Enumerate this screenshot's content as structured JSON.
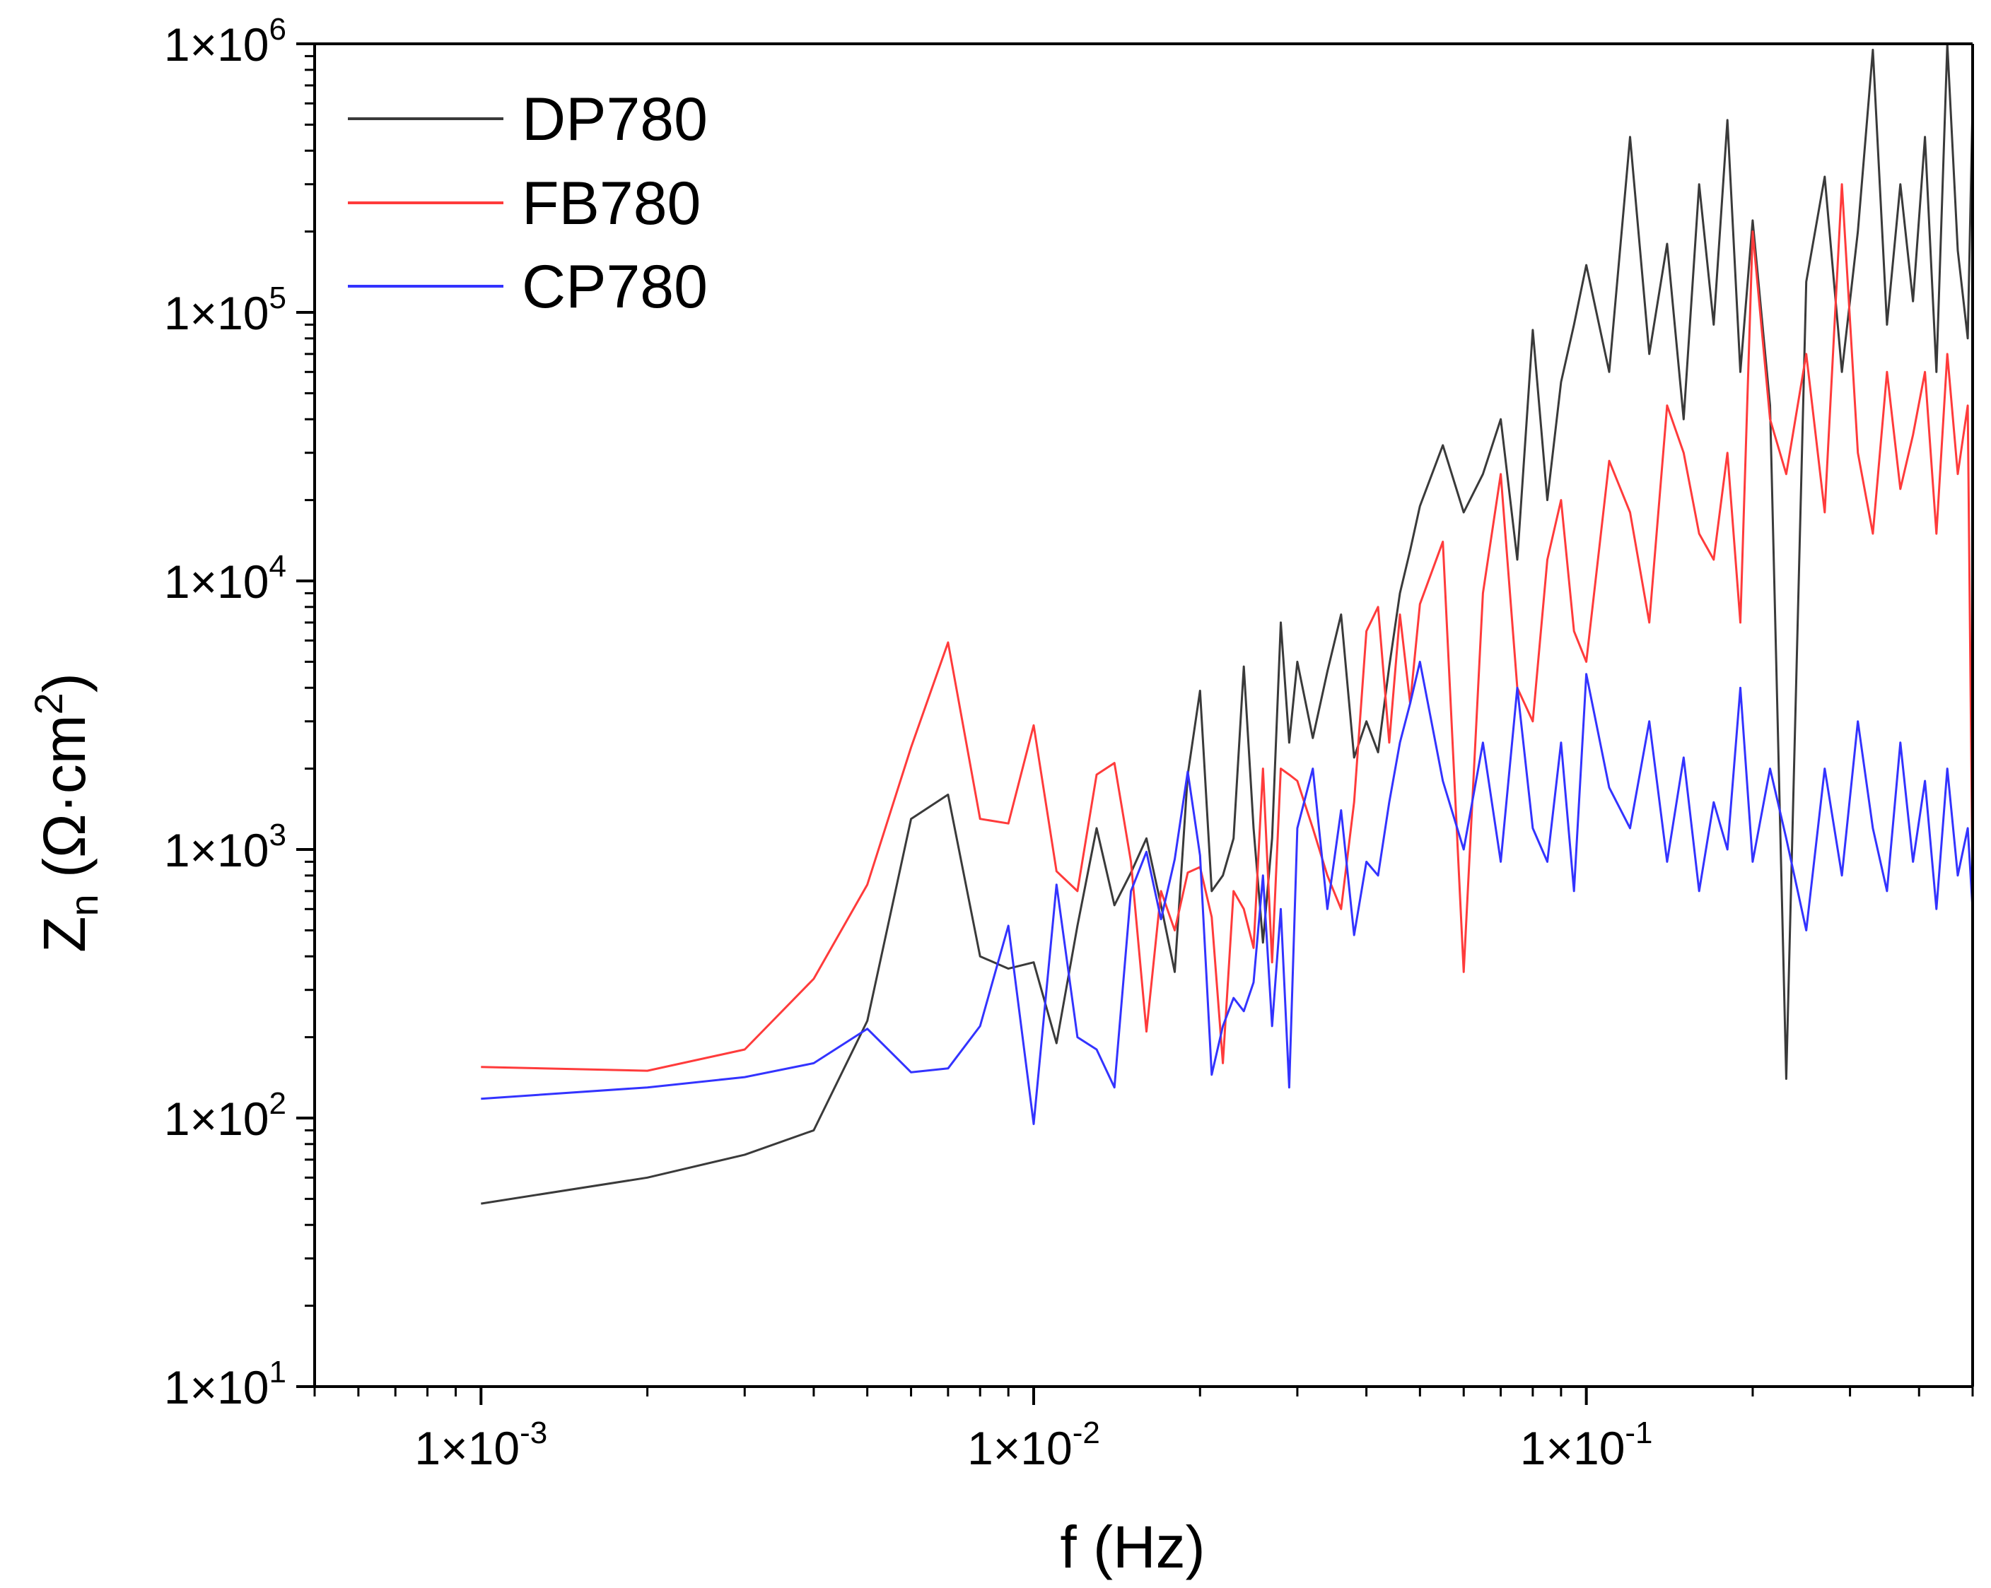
{
  "chart_data": {
    "type": "line",
    "xlabel": "f (Hz)",
    "ylabel": {
      "main": "Z",
      "sub": "n",
      "unit_prefix": " (Ω·cm",
      "unit_sup": "2",
      "unit_suffix": ")"
    },
    "x_scale": "log",
    "y_scale": "log",
    "xlim": [
      0.0005,
      0.5
    ],
    "ylim": [
      10,
      1000000
    ],
    "grid": false,
    "legend_position": "top-left",
    "x_ticks": [
      {
        "value": 0.001,
        "mantissa": "1×10",
        "exp": "-3"
      },
      {
        "value": 0.01,
        "mantissa": "1×10",
        "exp": "-2"
      },
      {
        "value": 0.1,
        "mantissa": "1×10",
        "exp": "-1"
      }
    ],
    "y_ticks": [
      {
        "value": 10,
        "mantissa": "1×10",
        "exp": "1"
      },
      {
        "value": 100,
        "mantissa": "1×10",
        "exp": "2"
      },
      {
        "value": 1000,
        "mantissa": "1×10",
        "exp": "3"
      },
      {
        "value": 10000,
        "mantissa": "1×10",
        "exp": "4"
      },
      {
        "value": 100000,
        "mantissa": "1×10",
        "exp": "5"
      },
      {
        "value": 1000000,
        "mantissa": "1×10",
        "exp": "6"
      }
    ],
    "series": [
      {
        "name": "DP780",
        "color": "#3a3a3a",
        "x": [
          0.001,
          0.002,
          0.003,
          0.004,
          0.005,
          0.006,
          0.007,
          0.008,
          0.009,
          0.01,
          0.011,
          0.012,
          0.013,
          0.014,
          0.015,
          0.016,
          0.017,
          0.018,
          0.019,
          0.02,
          0.021,
          0.022,
          0.023,
          0.024,
          0.025,
          0.026,
          0.027,
          0.028,
          0.029,
          0.03,
          0.032,
          0.034,
          0.036,
          0.038,
          0.04,
          0.042,
          0.044,
          0.046,
          0.048,
          0.05,
          0.055,
          0.06,
          0.065,
          0.07,
          0.075,
          0.08,
          0.085,
          0.09,
          0.095,
          0.1,
          0.11,
          0.12,
          0.13,
          0.14,
          0.15,
          0.16,
          0.17,
          0.18,
          0.19,
          0.2,
          0.215,
          0.23,
          0.25,
          0.27,
          0.29,
          0.31,
          0.33,
          0.35,
          0.37,
          0.39,
          0.41,
          0.43,
          0.45,
          0.47,
          0.49,
          0.5
        ],
        "y": [
          48,
          60,
          73,
          90,
          230,
          1300,
          1600,
          400,
          360,
          380,
          190,
          520,
          1200,
          620,
          820,
          1100,
          620,
          350,
          1900,
          3900,
          700,
          800,
          1100,
          4800,
          1200,
          450,
          1100,
          7000,
          2500,
          5000,
          2600,
          4600,
          7500,
          2200,
          3000,
          2300,
          4800,
          9000,
          13000,
          19000,
          32000,
          18000,
          25000,
          40000,
          12000,
          86000,
          20000,
          55000,
          90000,
          150000,
          60000,
          450000,
          70000,
          180000,
          40000,
          300000,
          90000,
          520000,
          60000,
          220000,
          45000,
          140,
          130000,
          320000,
          60000,
          200000,
          950000,
          90000,
          300000,
          110000,
          450000,
          60000,
          1000000,
          170000,
          80000,
          600000
        ]
      },
      {
        "name": "FB780",
        "color": "#ff3b3b",
        "x": [
          0.001,
          0.002,
          0.003,
          0.004,
          0.005,
          0.006,
          0.007,
          0.008,
          0.009,
          0.01,
          0.011,
          0.012,
          0.013,
          0.014,
          0.015,
          0.016,
          0.017,
          0.018,
          0.019,
          0.02,
          0.021,
          0.022,
          0.023,
          0.024,
          0.025,
          0.026,
          0.027,
          0.028,
          0.029,
          0.03,
          0.032,
          0.034,
          0.036,
          0.038,
          0.04,
          0.042,
          0.044,
          0.046,
          0.048,
          0.05,
          0.055,
          0.06,
          0.065,
          0.07,
          0.075,
          0.08,
          0.085,
          0.09,
          0.095,
          0.1,
          0.11,
          0.12,
          0.13,
          0.14,
          0.15,
          0.16,
          0.17,
          0.18,
          0.19,
          0.2,
          0.215,
          0.23,
          0.25,
          0.27,
          0.29,
          0.31,
          0.33,
          0.35,
          0.37,
          0.39,
          0.41,
          0.43,
          0.45,
          0.47,
          0.49,
          0.5
        ],
        "y": [
          155,
          150,
          180,
          330,
          740,
          2400,
          5900,
          1300,
          1250,
          2900,
          830,
          700,
          1900,
          2100,
          900,
          210,
          700,
          500,
          820,
          860,
          560,
          160,
          700,
          600,
          430,
          2000,
          380,
          2000,
          1900,
          1800,
          1200,
          800,
          600,
          1500,
          6500,
          8000,
          2500,
          7500,
          3500,
          8200,
          14000,
          350,
          9000,
          25000,
          4000,
          3000,
          12000,
          20000,
          6500,
          5000,
          28000,
          18000,
          7000,
          45000,
          30000,
          15000,
          12000,
          30000,
          7000,
          200000,
          40000,
          25000,
          70000,
          18000,
          300000,
          30000,
          15000,
          60000,
          22000,
          35000,
          60000,
          15000,
          70000,
          25000,
          45000,
          700
        ]
      },
      {
        "name": "CP780",
        "color": "#3333ff",
        "x": [
          0.001,
          0.002,
          0.003,
          0.004,
          0.005,
          0.006,
          0.007,
          0.008,
          0.009,
          0.01,
          0.011,
          0.012,
          0.013,
          0.014,
          0.015,
          0.016,
          0.017,
          0.018,
          0.019,
          0.02,
          0.021,
          0.022,
          0.023,
          0.024,
          0.025,
          0.026,
          0.027,
          0.028,
          0.029,
          0.03,
          0.032,
          0.034,
          0.036,
          0.038,
          0.04,
          0.042,
          0.044,
          0.046,
          0.048,
          0.05,
          0.055,
          0.06,
          0.065,
          0.07,
          0.075,
          0.08,
          0.085,
          0.09,
          0.095,
          0.1,
          0.11,
          0.12,
          0.13,
          0.14,
          0.15,
          0.16,
          0.17,
          0.18,
          0.19,
          0.2,
          0.215,
          0.23,
          0.25,
          0.27,
          0.29,
          0.31,
          0.33,
          0.35,
          0.37,
          0.39,
          0.41,
          0.43,
          0.45,
          0.47,
          0.49,
          0.5
        ],
        "y": [
          118,
          130,
          142,
          160,
          215,
          148,
          153,
          220,
          520,
          95,
          740,
          200,
          180,
          130,
          700,
          980,
          550,
          920,
          1950,
          950,
          145,
          220,
          280,
          250,
          320,
          800,
          220,
          600,
          130,
          1200,
          2000,
          600,
          1400,
          480,
          900,
          800,
          1500,
          2500,
          3500,
          5000,
          1800,
          1000,
          2500,
          900,
          4000,
          1200,
          900,
          2500,
          700,
          4500,
          1700,
          1200,
          3000,
          900,
          2200,
          700,
          1500,
          1000,
          4000,
          900,
          2000,
          1100,
          500,
          2000,
          800,
          3000,
          1200,
          700,
          2500,
          900,
          1800,
          600,
          2000,
          800,
          1200,
          600
        ]
      }
    ]
  }
}
